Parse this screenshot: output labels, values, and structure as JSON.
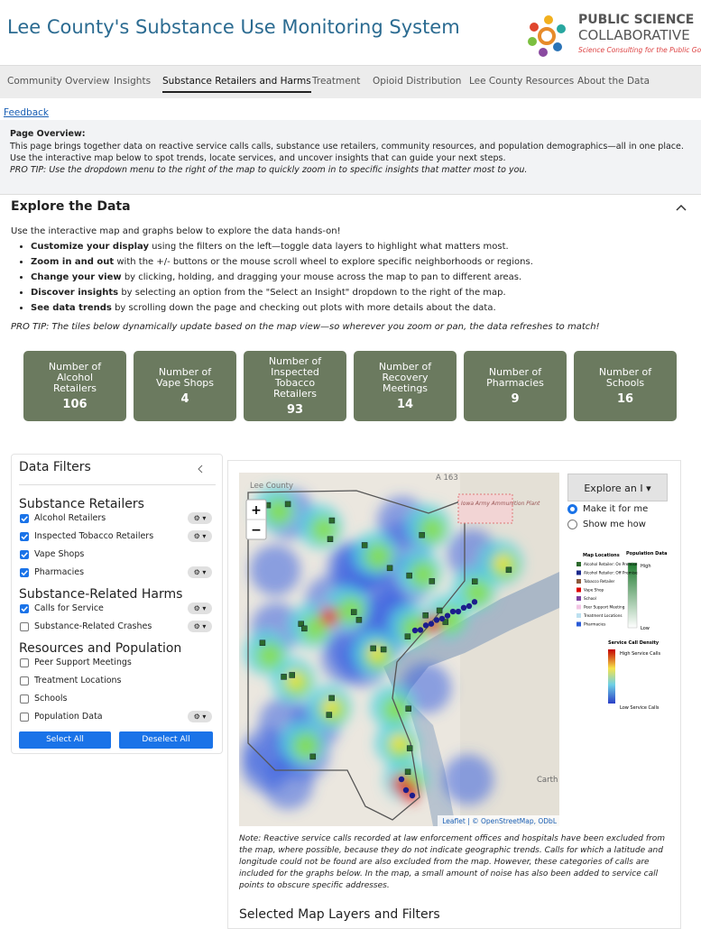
{
  "header": {
    "title": "Lee County's Substance Use Monitoring System",
    "logo_line1": "PUBLIC SCIENCE",
    "logo_line2": "COLLABORATIVE",
    "tagline": "Science Consulting for the Public Good"
  },
  "nav": {
    "tabs": [
      "Community Overview",
      "Insights",
      "Substance Retailers and Harms",
      "Treatment",
      "Opioid Distribution",
      "Lee County Resources",
      "About the Data"
    ],
    "active": 2
  },
  "feedback": "Feedback",
  "overview": {
    "heading": "Page Overview:",
    "text": "This page brings together data on reactive service calls calls, substance use retailers, community resources, and population demographics—all in one place. Use the interactive map below to spot trends, locate services, and uncover insights that can guide your next steps.",
    "tip": "PRO TIP: Use the dropdown menu to the right of the map to quickly zoom in to specific insights that matter most to you."
  },
  "explore": {
    "heading": "Explore the Data",
    "intro": "Use the interactive map and graphs below to explore the data hands-on!",
    "bullets": [
      {
        "bold": "Customize your display",
        "text": " using the filters on the left—toggle data layers to highlight what matters most."
      },
      {
        "bold": "Zoom in and out",
        "text": " with the +/- buttons or the mouse scroll wheel to explore specific neighborhoods or regions."
      },
      {
        "bold": "Change your view",
        "text": " by clicking, holding, and dragging your mouse across the map to pan to different areas."
      },
      {
        "bold": "Discover insights",
        "text": " by selecting an option from the \"Select an Insight\" dropdown to the right of the map."
      },
      {
        "bold": "See data trends",
        "text": " by scrolling down the page and checking out plots with more details about the data."
      }
    ],
    "tip": "PRO TIP: The tiles below dynamically update based on the map view—so wherever you zoom or pan, the data refreshes to match!"
  },
  "tiles": [
    {
      "label": "Number of Alcohol Retailers",
      "value": 106
    },
    {
      "label": "Number of Vape Shops",
      "value": 4
    },
    {
      "label": "Number of Inspected Tobacco Retailers",
      "value": 93
    },
    {
      "label": "Number of Recovery Meetings",
      "value": 14
    },
    {
      "label": "Number of Pharmacies",
      "value": 9
    },
    {
      "label": "Number of Schools",
      "value": 16
    }
  ],
  "filters": {
    "title": "Data Filters",
    "groups": [
      {
        "title": "Substance Retailers",
        "items": [
          {
            "label": "Alcohol Retailers",
            "checked": true,
            "gear": true
          },
          {
            "label": "Inspected Tobacco Retailers",
            "checked": true,
            "gear": true
          },
          {
            "label": "Vape Shops",
            "checked": true,
            "gear": false
          },
          {
            "label": "Pharmacies",
            "checked": true,
            "gear": true
          }
        ]
      },
      {
        "title": "Substance-Related Harms",
        "items": [
          {
            "label": "Calls for Service",
            "checked": true,
            "gear": true
          },
          {
            "label": "Substance-Related Crashes",
            "checked": false,
            "gear": true
          }
        ]
      },
      {
        "title": "Resources and Population",
        "items": [
          {
            "label": "Peer Support Meetings",
            "checked": false,
            "gear": false
          },
          {
            "label": "Treatment Locations",
            "checked": false,
            "gear": false
          },
          {
            "label": "Schools",
            "checked": false,
            "gear": false
          },
          {
            "label": "Population Data",
            "checked": false,
            "gear": true
          }
        ]
      }
    ],
    "select_all": "Select All",
    "deselect_all": "Deselect All"
  },
  "map": {
    "county_label": "Lee County",
    "road_label": "A 163",
    "plant_label": "Iowa Army Ammunition Plant",
    "town_label": "Carth",
    "zoom_in": "+",
    "zoom_out": "−",
    "attribution": "Leaflet | © OpenStreetMap, ODbL",
    "insight_button": "Explore an I",
    "radios": [
      {
        "label": "Make it for me",
        "selected": true
      },
      {
        "label": "Show me how",
        "selected": false
      }
    ],
    "legend": {
      "locations_title": "Map Locations",
      "population_title": "Population Data",
      "high": "High",
      "low": "Low",
      "items": [
        "Alcohol Retailer: On Premise",
        "Alcohol Retailer: Off Premise",
        "Tobacco Retailer",
        "Vape Shop",
        "School",
        "Peer Support Meeting",
        "Treatment Locations",
        "Pharmacies"
      ],
      "density_title": "Service Call Density",
      "density_high": "High Service Calls",
      "density_low": "Low Service Calls"
    },
    "note": "Note: Reactive service calls recorded at law enforcement offices and hospitals have been excluded from the map, where possible, because they do not indicate geographic trends. Calls for which a latitude and longitude could not be found are also excluded from the map. However, these categories of calls are included for the graphs below. In the map, a small amount of noise has also been added to service call points to obscure specific addresses.",
    "selected_heading": "Selected Map Layers and Filters"
  }
}
